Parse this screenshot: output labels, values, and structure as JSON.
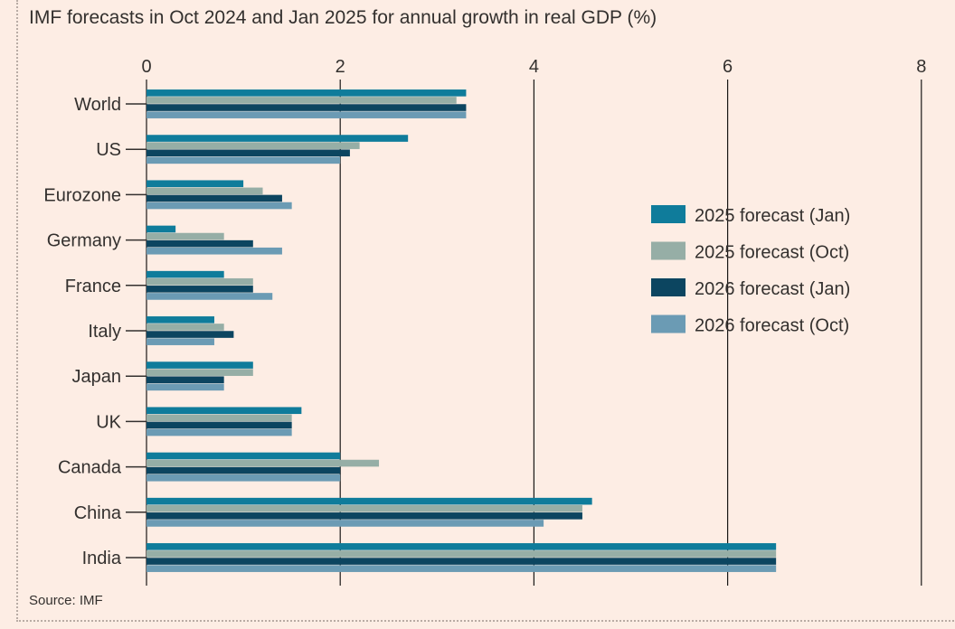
{
  "title": "IMF forecasts in Oct 2024 and Jan 2025 for annual growth in real GDP (%)",
  "source": "Source: IMF",
  "colors": {
    "background": "#fdede4",
    "series": [
      "#0f7c9b",
      "#96aea6",
      "#0c4560",
      "#6b9bb4"
    ]
  },
  "chart_data": {
    "type": "bar",
    "orientation": "horizontal",
    "title": "IMF forecasts in Oct 2024 and Jan 2025 for annual growth in real GDP (%)",
    "xlabel": "",
    "ylabel": "",
    "xlim": [
      0,
      8
    ],
    "xticks": [
      0,
      2,
      4,
      6,
      8
    ],
    "grid": true,
    "legend_position": "right",
    "categories": [
      "World",
      "US",
      "Eurozone",
      "Germany",
      "France",
      "Italy",
      "Japan",
      "UK",
      "Canada",
      "China",
      "India"
    ],
    "series": [
      {
        "name": "2025 forecast (Jan)",
        "values": [
          3.3,
          2.7,
          1.0,
          0.3,
          0.8,
          0.7,
          1.1,
          1.6,
          2.0,
          4.6,
          6.5
        ]
      },
      {
        "name": "2025 forecast (Oct)",
        "values": [
          3.2,
          2.2,
          1.2,
          0.8,
          1.1,
          0.8,
          1.1,
          1.5,
          2.4,
          4.5,
          6.5
        ]
      },
      {
        "name": "2026 forecast (Jan)",
        "values": [
          3.3,
          2.1,
          1.4,
          1.1,
          1.1,
          0.9,
          0.8,
          1.5,
          2.0,
          4.5,
          6.5
        ]
      },
      {
        "name": "2026 forecast (Oct)",
        "values": [
          3.3,
          2.0,
          1.5,
          1.4,
          1.3,
          0.7,
          0.8,
          1.5,
          2.0,
          4.1,
          6.5
        ]
      }
    ]
  }
}
